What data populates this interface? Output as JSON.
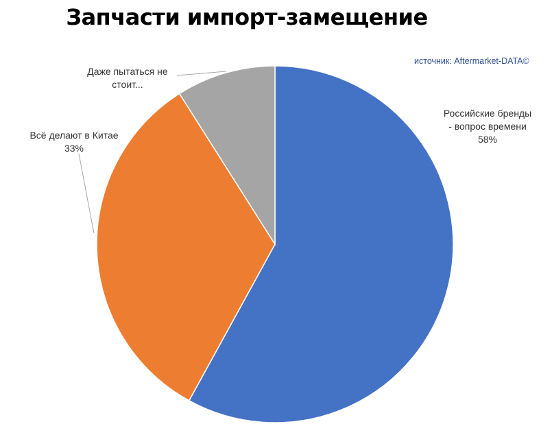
{
  "chart_data": {
    "type": "pie",
    "title": "Запчасти импорт-замещение",
    "source": "источник: Aftermarket-DATA©",
    "start_angle_deg": 0,
    "direction": "clockwise",
    "slices": [
      {
        "lines": [
          "Российские бренды",
          "- вопрос времени",
          "58%"
        ],
        "value": 58,
        "color": "#4472c4"
      },
      {
        "lines": [
          "Всё делают в Китае",
          "33%"
        ],
        "value": 33,
        "color": "#ed7d31"
      },
      {
        "lines": [
          "Даже пытаться не",
          "стоит..."
        ],
        "value": 9,
        "color": "#a5a5a5"
      }
    ]
  }
}
